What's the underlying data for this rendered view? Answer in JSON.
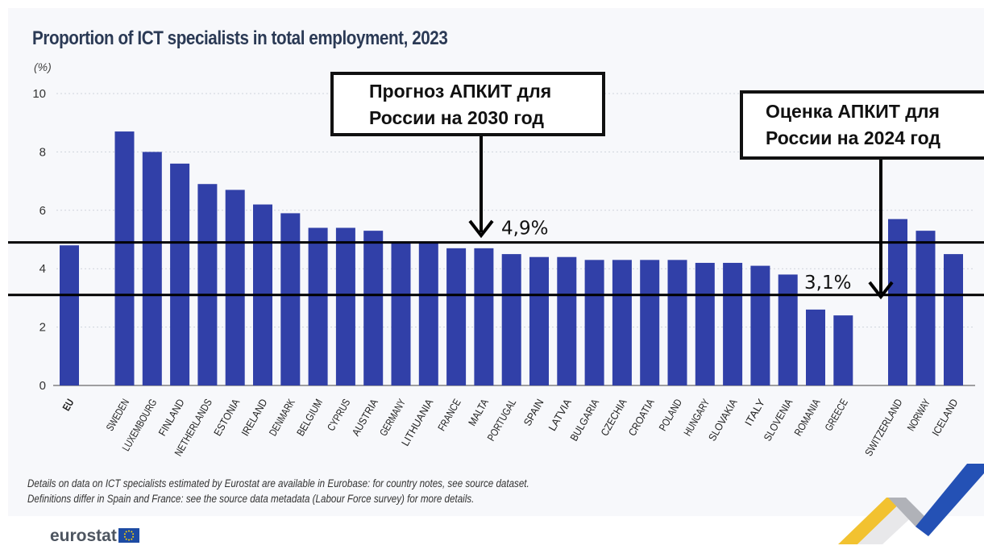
{
  "title": "Proportion of ICT specialists in total employment, 2023",
  "unit_label": "(%)",
  "footnotes": [
    "Details on data on ICT specialists estimated by Eurostat are available in Eurobase: for country notes, see source dataset.",
    "Definitions differ in Spain and France: see the source data metadata (Labour Force survey) for more details."
  ],
  "logo": "eurostat",
  "callouts": {
    "forecast_2030": {
      "line1": "Прогноз АПКИТ для",
      "line2": "России на 2030 год"
    },
    "estimate_2024": {
      "line1": "Оценка АПКИТ для",
      "line2": "России на 2024 год"
    }
  },
  "chart_data": {
    "type": "bar",
    "title": "Proportion of ICT specialists in total employment, 2023",
    "ylabel": "(%)",
    "ylim": [
      0,
      10
    ],
    "yticks": [
      0,
      2,
      4,
      6,
      8,
      10
    ],
    "grid": true,
    "bar_color": "#3140a8",
    "categories": [
      "EU",
      "SWEDEN",
      "LUXEMBOURG",
      "FINLAND",
      "NETHERLANDS",
      "ESTONIA",
      "IRELAND",
      "DENMARK",
      "BELGIUM",
      "CYPRUS",
      "AUSTRIA",
      "GERMANY",
      "LITHUANIA",
      "FRANCE",
      "MALTA",
      "PORTUGAL",
      "SPAIN",
      "LATVIA",
      "BULGARIA",
      "CZECHIA",
      "CROATIA",
      "POLAND",
      "HUNGARY",
      "SLOVAKIA",
      "ITALY",
      "SLOVENIA",
      "ROMANIA",
      "GREECE",
      "SWITZERLAND",
      "NORWAY",
      "ICELAND"
    ],
    "values": [
      4.8,
      8.7,
      8.0,
      7.6,
      6.9,
      6.7,
      6.2,
      5.9,
      5.4,
      5.4,
      5.3,
      4.9,
      4.9,
      4.7,
      4.7,
      4.5,
      4.4,
      4.4,
      4.3,
      4.3,
      4.3,
      4.3,
      4.2,
      4.2,
      4.1,
      3.8,
      2.6,
      2.4,
      5.7,
      5.3,
      4.5
    ],
    "reference_lines": [
      {
        "value": 4.9,
        "label": "4,9%"
      },
      {
        "value": 3.1,
        "label": "3,1%"
      }
    ]
  }
}
